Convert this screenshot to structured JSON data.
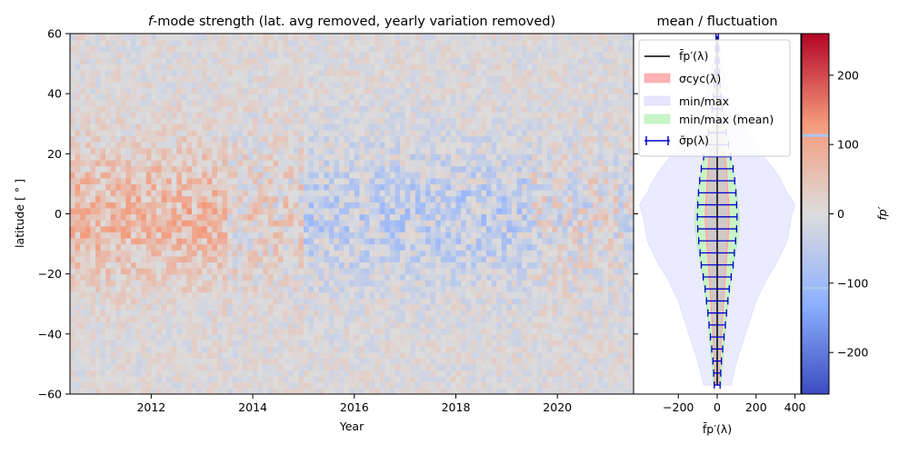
{
  "chart_data": [
    {
      "type": "heatmap",
      "title_prefix": "f",
      "title_rest": "-mode strength (lat. avg removed, yearly variation removed)",
      "xlabel": "Year",
      "ylabel": "latitude [ ° ]",
      "xlim": [
        2010.4,
        2021.5
      ],
      "ylim": [
        -60,
        60
      ],
      "xticks": [
        2012,
        2014,
        2016,
        2018,
        2020
      ],
      "yticks": [
        -60,
        -40,
        -20,
        0,
        20,
        40,
        60
      ],
      "grid": false,
      "n_time_bins": 111,
      "n_lat_bins": 60,
      "colormap": "coolwarm",
      "value_range": [
        -260,
        260
      ],
      "notes_visible": "Positive (red) values dominate 2010-2013 at low latitudes; negative (blue) values dominate 2015-2019 near the equator."
    },
    {
      "type": "line",
      "title": "mean / fluctuation",
      "xlabel": "f̄p′(λ)",
      "xlim": [
        -430,
        430
      ],
      "ylim": [
        -60,
        60
      ],
      "xticks": [
        -200,
        0,
        200,
        400
      ],
      "legend_position": "top",
      "legend": [
        {
          "label": "f̄p′(λ)",
          "kind": "line",
          "color": "#000000"
        },
        {
          "label": "σcyc(λ)",
          "kind": "patch",
          "color": "#ffb3b3"
        },
        {
          "label": "min/max",
          "kind": "patch",
          "color": "#e6e6ff"
        },
        {
          "label": "min/max (mean)",
          "kind": "patch",
          "color": "#c8f5c8"
        },
        {
          "label": "σ̄p(λ)",
          "kind": "errorbar",
          "color": "#0000cc"
        }
      ],
      "latitude": [
        -57,
        -53,
        -49,
        -45,
        -41,
        -37,
        -33,
        -29,
        -25,
        -21,
        -17,
        -13,
        -9,
        -5,
        -1,
        3,
        7,
        11,
        15,
        19,
        23,
        27,
        31,
        35,
        39,
        43,
        47,
        51,
        55,
        59
      ],
      "mean": [
        0,
        0,
        0,
        0,
        0,
        0,
        0,
        0,
        0,
        0,
        0,
        0,
        0,
        0,
        0,
        0,
        0,
        0,
        0,
        0,
        0,
        0,
        0,
        0,
        0,
        0,
        0,
        0,
        0,
        0
      ],
      "sigma_p": [
        15,
        18,
        22,
        28,
        35,
        42,
        48,
        55,
        62,
        72,
        82,
        88,
        95,
        100,
        102,
        100,
        96,
        90,
        82,
        70,
        58,
        45,
        35,
        26,
        20,
        15,
        12,
        10,
        8,
        6
      ],
      "sigma_cyc": [
        10,
        12,
        15,
        18,
        22,
        26,
        30,
        34,
        38,
        42,
        46,
        50,
        55,
        60,
        62,
        60,
        56,
        52,
        48,
        42,
        36,
        30,
        24,
        18,
        14,
        10,
        8,
        6,
        5,
        4
      ],
      "minmax_half_width": [
        70,
        85,
        100,
        120,
        140,
        160,
        180,
        200,
        230,
        260,
        300,
        330,
        360,
        370,
        380,
        400,
        360,
        330,
        290,
        240,
        200,
        160,
        120,
        90,
        60,
        45,
        35,
        25,
        18,
        10
      ],
      "minmax_mean_half_width": [
        20,
        24,
        28,
        34,
        40,
        45,
        50,
        58,
        66,
        75,
        85,
        95,
        105,
        112,
        115,
        108,
        100,
        92,
        80,
        68,
        55,
        44,
        34,
        26,
        20,
        16,
        13,
        10,
        8,
        6
      ],
      "colorbar": {
        "label": "fp′",
        "range": [
          -260,
          260
        ],
        "ticks": [
          -200,
          -100,
          0,
          100,
          200
        ],
        "marker_lines": [
          113,
          -107
        ]
      }
    }
  ]
}
